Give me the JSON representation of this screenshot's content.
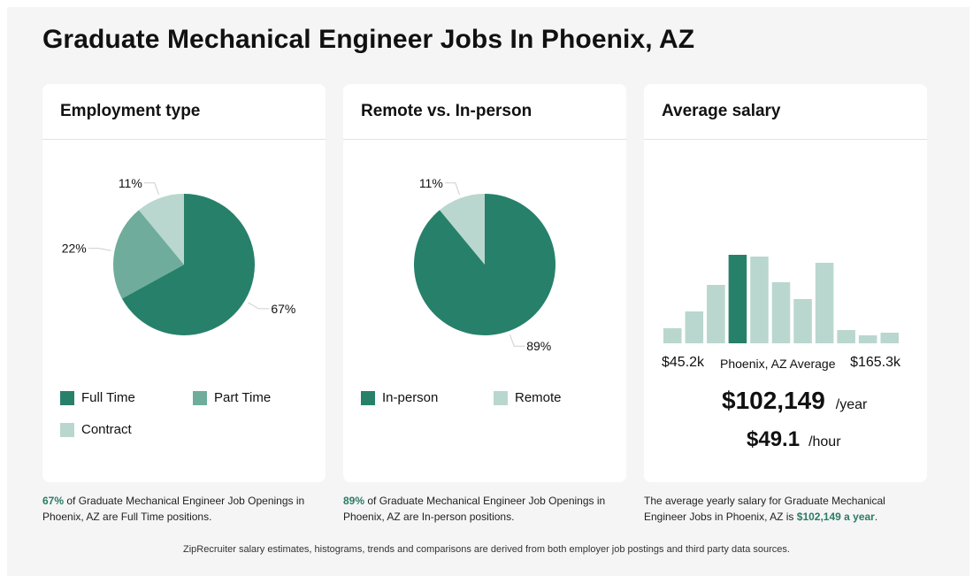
{
  "page": {
    "title": "Graduate Mechanical Engineer Jobs In Phoenix, AZ"
  },
  "colors": {
    "dark": "#27806a",
    "medium": "#6fac9c",
    "light": "#b9d7ce",
    "leader": "#cfcfcf"
  },
  "employment_type": {
    "title": "Employment type",
    "legend": [
      "Full Time",
      "Part Time",
      "Contract"
    ],
    "caption": {
      "highlight": "67%",
      "text": " of Graduate Mechanical Engineer Job Openings in Phoenix, AZ are Full Time positions."
    }
  },
  "remote": {
    "title": "Remote vs. In-person",
    "legend": [
      "In-person",
      "Remote"
    ],
    "caption": {
      "highlight": "89%",
      "text": " of Graduate Mechanical Engineer Job Openings in Phoenix, AZ are In-person positions."
    }
  },
  "salary": {
    "title": "Average salary",
    "min_label": "$45.2k",
    "mid_label": "Phoenix, AZ Average",
    "max_label": "$165.3k",
    "yearly_amount": "$102,149",
    "yearly_unit": "/year",
    "hourly_amount": "$49.1",
    "hourly_unit": "/hour",
    "caption": {
      "prefix": "The average yearly salary for Graduate Mechanical Engineer Jobs in Phoenix, AZ is ",
      "highlight": "$102,149 a year",
      "suffix": "."
    }
  },
  "footnote": "ZipRecruiter salary estimates, histograms, trends and comparisons are derived from both employer job postings and third party data sources.",
  "chart_data": [
    {
      "type": "pie",
      "title": "Employment type",
      "categories": [
        "Full Time",
        "Part Time",
        "Contract"
      ],
      "values": [
        67,
        22,
        11
      ],
      "labels": [
        "67%",
        "22%",
        "11%"
      ]
    },
    {
      "type": "pie",
      "title": "Remote vs. In-person",
      "categories": [
        "In-person",
        "Remote"
      ],
      "values": [
        89,
        11
      ],
      "labels": [
        "89%",
        "11%"
      ]
    },
    {
      "type": "bar",
      "title": "Average salary",
      "values": [
        17,
        36,
        66,
        100,
        98,
        69,
        50,
        91,
        15,
        9,
        12
      ],
      "highlight_index": 3,
      "x_range_labels": [
        "$45.2k",
        "$165.3k"
      ]
    }
  ]
}
